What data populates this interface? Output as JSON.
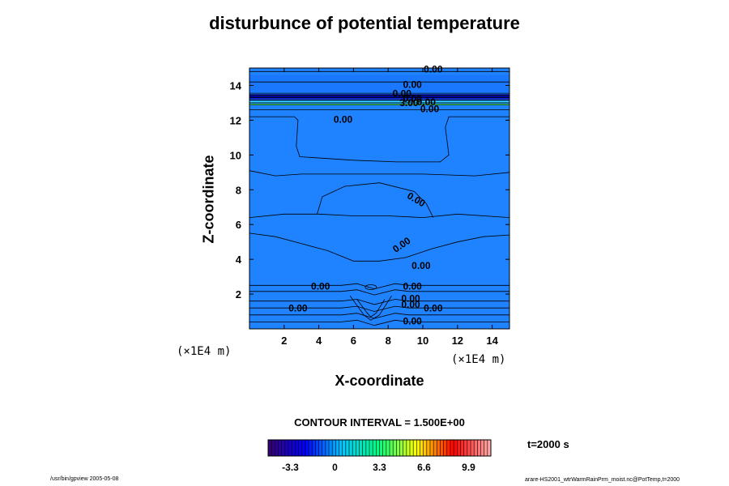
{
  "chart_data": {
    "type": "contour",
    "title": "disturbunce of potential temperature",
    "xlabel": "X-coordinate",
    "ylabel": "Z-coordinate",
    "x_unit": "(×1E4 m)",
    "y_unit": "(×1E4 m)",
    "xlim": [
      0,
      15
    ],
    "ylim": [
      0,
      15
    ],
    "x_ticks": [
      "2",
      "4",
      "6",
      "8",
      "10",
      "12",
      "14"
    ],
    "y_ticks": [
      "2",
      "4",
      "6",
      "8",
      "10",
      "12",
      "14"
    ],
    "contour_labels": [
      "0.00",
      "0.00",
      "0.00",
      "0.00",
      "0.00",
      "0.00",
      "0.00",
      "0.00",
      "0.00",
      "0.00",
      "0.00",
      "0.00",
      "0.00",
      "0.00",
      "0.00",
      "0.00",
      "0.00",
      "3.00"
    ],
    "contour_interval": "CONTOUR INTERVAL = 1.500E+00",
    "colorbar": {
      "ticks": [
        "-3.3",
        "0",
        "3.3",
        "6.6",
        "9.9"
      ],
      "range": [
        -4.95,
        11.55
      ],
      "colors": [
        "#3a0070",
        "#0000ff",
        "#00c8ff",
        "#00ff7f",
        "#ffff00",
        "#ff0000",
        "#ffb0b0"
      ]
    },
    "time_label": "t=2000 s",
    "field_color": "#1f82ff",
    "footer_left": "/usr/bin/gpview 2005-05-08",
    "footer_right": "arare-HS2001_wtrWarmRainPrm_moist.nc@PotTemp,t=2000"
  }
}
